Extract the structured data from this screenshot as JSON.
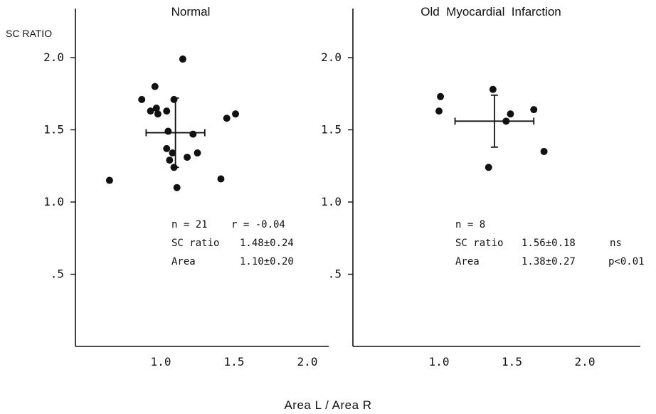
{
  "figure": {
    "y_axis_title": "SC RATIO",
    "x_axis_title": "Area L / Area R"
  },
  "chart_data": [
    {
      "type": "scatter",
      "title": "Normal",
      "xlabel": "Area L / Area R",
      "ylabel": "SC RATIO",
      "xlim": [
        0.5,
        2.2
      ],
      "ylim": [
        0.0,
        2.35
      ],
      "x_ticks": [
        {
          "value": 1.0,
          "label": "1.0"
        },
        {
          "value": 1.5,
          "label": "1.5"
        },
        {
          "value": 2.0,
          "label": "2.0"
        }
      ],
      "y_ticks": [
        {
          "value": 2.0,
          "label": "2.0"
        },
        {
          "value": 1.5,
          "label": "1.5"
        },
        {
          "value": 1.0,
          "label": "1.0"
        },
        {
          "value": 0.5,
          "label": ".5"
        }
      ],
      "grid": false,
      "points": [
        {
          "x": 0.65,
          "y": 1.15
        },
        {
          "x": 0.87,
          "y": 1.71
        },
        {
          "x": 0.93,
          "y": 1.63
        },
        {
          "x": 0.96,
          "y": 1.8
        },
        {
          "x": 0.97,
          "y": 1.65
        },
        {
          "x": 0.98,
          "y": 1.61
        },
        {
          "x": 1.04,
          "y": 1.63
        },
        {
          "x": 1.04,
          "y": 1.37
        },
        {
          "x": 1.05,
          "y": 1.49
        },
        {
          "x": 1.06,
          "y": 1.29
        },
        {
          "x": 1.08,
          "y": 1.34
        },
        {
          "x": 1.09,
          "y": 1.24
        },
        {
          "x": 1.09,
          "y": 1.71
        },
        {
          "x": 1.11,
          "y": 1.1
        },
        {
          "x": 1.15,
          "y": 1.99
        },
        {
          "x": 1.18,
          "y": 1.31
        },
        {
          "x": 1.22,
          "y": 1.47
        },
        {
          "x": 1.25,
          "y": 1.34
        },
        {
          "x": 1.41,
          "y": 1.16
        },
        {
          "x": 1.45,
          "y": 1.58
        },
        {
          "x": 1.51,
          "y": 1.61
        }
      ],
      "mean": {
        "x": 1.1,
        "y": 1.48,
        "x_sd": 0.2,
        "y_sd": 0.24
      },
      "annotations": [
        {
          "label": "n = 21",
          "value": "r = -0.04"
        },
        {
          "label": "SC ratio",
          "value": "1.48±0.24"
        },
        {
          "label": "Area",
          "value": "1.10±0.20"
        }
      ]
    },
    {
      "type": "scatter",
      "title": "Old  Myocardial  Infarction",
      "xlabel": "Area L / Area R",
      "ylabel": "SC RATIO",
      "xlim": [
        0.5,
        2.2
      ],
      "ylim": [
        0.0,
        2.35
      ],
      "x_ticks": [
        {
          "value": 1.0,
          "label": "1.0"
        },
        {
          "value": 1.5,
          "label": "1.5"
        },
        {
          "value": 2.0,
          "label": "2.0"
        }
      ],
      "y_ticks": [
        {
          "value": 2.0,
          "label": "2.0"
        },
        {
          "value": 1.5,
          "label": "1.5"
        },
        {
          "value": 1.0,
          "label": "1.0"
        },
        {
          "value": 0.5,
          "label": ".5"
        }
      ],
      "grid": false,
      "points": [
        {
          "x": 1.0,
          "y": 1.63
        },
        {
          "x": 1.01,
          "y": 1.73
        },
        {
          "x": 1.34,
          "y": 1.24
        },
        {
          "x": 1.37,
          "y": 1.78
        },
        {
          "x": 1.46,
          "y": 1.56
        },
        {
          "x": 1.49,
          "y": 1.61
        },
        {
          "x": 1.65,
          "y": 1.64
        },
        {
          "x": 1.72,
          "y": 1.35
        }
      ],
      "mean": {
        "x": 1.38,
        "y": 1.56,
        "x_sd": 0.27,
        "y_sd": 0.18
      },
      "annotations": [
        {
          "label": "n = 8",
          "value": ""
        },
        {
          "label": "SC ratio",
          "value": "1.56±0.18",
          "note": "ns"
        },
        {
          "label": "Area",
          "value": "1.38±0.27",
          "note": "p<0.01"
        }
      ]
    }
  ]
}
